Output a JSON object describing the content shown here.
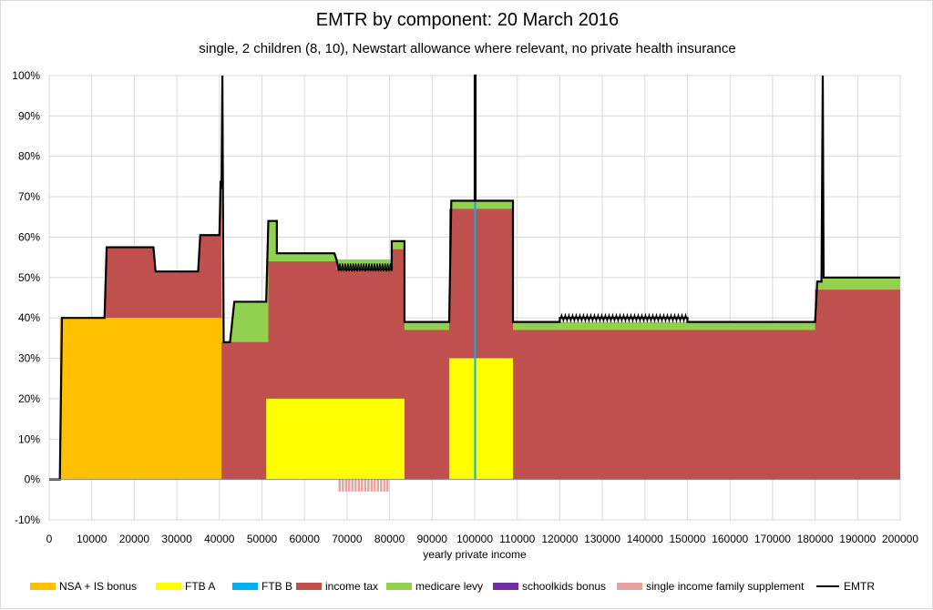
{
  "chart_data": {
    "type": "area",
    "title": "EMTR by component: 20 March 2016",
    "subtitle": "single, 2 children (8, 10), Newstart allowance where relevant, no private health insurance",
    "xlabel": "yearly private income",
    "ylabel": "",
    "xlim": [
      0,
      200000
    ],
    "ylim": [
      -10,
      100
    ],
    "x_ticks": [
      0,
      10000,
      20000,
      30000,
      40000,
      50000,
      60000,
      70000,
      80000,
      90000,
      100000,
      110000,
      120000,
      130000,
      140000,
      150000,
      160000,
      170000,
      180000,
      190000,
      200000
    ],
    "y_ticks": [
      -10,
      0,
      10,
      20,
      30,
      40,
      50,
      60,
      70,
      80,
      90,
      100
    ],
    "y_tick_labels": [
      "-10%",
      "0%",
      "10%",
      "20%",
      "30%",
      "40%",
      "50%",
      "60%",
      "70%",
      "80%",
      "90%",
      "100%"
    ],
    "grid": "vertical and horizontal",
    "legend_position": "bottom",
    "series": [
      {
        "name": "NSA + IS bonus",
        "color": "#ffc000",
        "type": "stacked-area",
        "points": [
          [
            2500,
            0
          ],
          [
            2500,
            40
          ],
          [
            40500,
            40
          ],
          [
            40500,
            0
          ]
        ]
      },
      {
        "name": "FTB A",
        "color": "#ffff00",
        "type": "stacked-area",
        "points": [
          [
            51000,
            0
          ],
          [
            51000,
            20
          ],
          [
            83500,
            20
          ],
          [
            83500,
            0
          ],
          [
            94000,
            0
          ],
          [
            94000,
            30
          ],
          [
            109000,
            30
          ],
          [
            109000,
            0
          ]
        ]
      },
      {
        "name": "FTB B",
        "color": "#00b0f0",
        "type": "stacked-area",
        "points": [
          [
            100000,
            0
          ],
          [
            100000,
            100
          ],
          [
            100200,
            100
          ],
          [
            100200,
            0
          ]
        ]
      },
      {
        "name": "income tax",
        "color": "#c0504d",
        "type": "stacked-area",
        "points": [
          [
            13000,
            40
          ],
          [
            13500,
            57.5
          ],
          [
            24500,
            57.5
          ],
          [
            25000,
            51.5
          ],
          [
            35000,
            51.5
          ],
          [
            35500,
            60.5
          ],
          [
            40000,
            60.5
          ],
          [
            40500,
            72
          ],
          [
            40600,
            34
          ],
          [
            42500,
            34
          ],
          [
            42500,
            34
          ],
          [
            51500,
            34
          ],
          [
            51500,
            54
          ],
          [
            67500,
            54
          ],
          [
            67500,
            52
          ],
          [
            80500,
            52
          ],
          [
            80500,
            57
          ],
          [
            83500,
            57
          ],
          [
            83500,
            37
          ],
          [
            94000,
            37
          ],
          [
            94000,
            67
          ],
          [
            109000,
            67
          ],
          [
            109000,
            37
          ],
          [
            180000,
            37
          ],
          [
            180000,
            47
          ],
          [
            200000,
            47
          ]
        ]
      },
      {
        "name": "medicare levy",
        "color": "#92d050",
        "type": "stacked-area",
        "points": [
          [
            42500,
            34
          ],
          [
            43500,
            44
          ],
          [
            51000,
            44
          ],
          [
            51500,
            64
          ],
          [
            53500,
            64
          ],
          [
            53500,
            56
          ],
          [
            67500,
            56
          ],
          [
            67500,
            54.5
          ],
          [
            80500,
            54.5
          ],
          [
            80500,
            59
          ],
          [
            83500,
            59
          ],
          [
            83500,
            39
          ],
          [
            94000,
            39
          ],
          [
            94500,
            69
          ],
          [
            109000,
            69
          ],
          [
            109000,
            39
          ],
          [
            180000,
            39
          ],
          [
            180500,
            49
          ],
          [
            181500,
            49
          ],
          [
            182000,
            50
          ],
          [
            200000,
            50
          ]
        ]
      },
      {
        "name": "schoolkids bonus",
        "color": "#7030a0",
        "type": "stacked-area",
        "points": []
      },
      {
        "name": "single income family supplement",
        "color": "#e6a3a0",
        "type": "stacked-area",
        "points": [
          [
            68000,
            0
          ],
          [
            68000,
            -3
          ],
          [
            80000,
            -3
          ],
          [
            80000,
            0
          ]
        ]
      },
      {
        "name": "EMTR",
        "color": "#000000",
        "type": "line",
        "points": [
          [
            0,
            0
          ],
          [
            2500,
            0
          ],
          [
            3000,
            40
          ],
          [
            13000,
            40
          ],
          [
            13500,
            57.5
          ],
          [
            24500,
            57.5
          ],
          [
            25000,
            51.5
          ],
          [
            35000,
            51.5
          ],
          [
            35500,
            60.5
          ],
          [
            40000,
            60.5
          ],
          [
            40300,
            74
          ],
          [
            40500,
            72
          ],
          [
            40700,
            100
          ],
          [
            41000,
            34
          ],
          [
            42500,
            34
          ],
          [
            43500,
            44
          ],
          [
            51000,
            44
          ],
          [
            51500,
            64
          ],
          [
            53500,
            64
          ],
          [
            53500,
            56
          ],
          [
            67000,
            56
          ],
          [
            67500,
            54.5
          ],
          [
            68000,
            52
          ],
          [
            80500,
            52
          ],
          [
            80500,
            59
          ],
          [
            83500,
            59
          ],
          [
            83500,
            39
          ],
          [
            94000,
            39
          ],
          [
            94500,
            69
          ],
          [
            100000,
            69
          ],
          [
            100000,
            100
          ],
          [
            100200,
            100
          ],
          [
            100200,
            69
          ],
          [
            109000,
            69
          ],
          [
            109000,
            39
          ],
          [
            120000,
            39
          ],
          [
            120000,
            40
          ],
          [
            150000,
            40
          ],
          [
            150000,
            39
          ],
          [
            180000,
            39
          ],
          [
            180500,
            49
          ],
          [
            181500,
            49
          ],
          [
            181800,
            100
          ],
          [
            182000,
            50
          ],
          [
            200000,
            50
          ]
        ]
      }
    ]
  }
}
